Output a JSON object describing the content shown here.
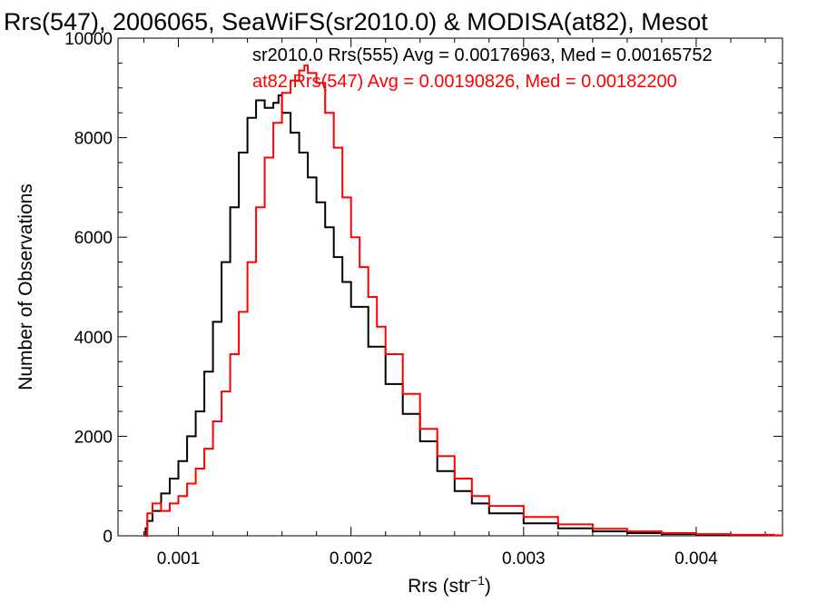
{
  "chart_data": {
    "type": "line",
    "title": "Rrs(547), 2006065, SeaWiFS(sr2010.0) & MODISA(at82), Mesot",
    "xlabel_main": "Rrs (str",
    "xlabel_sup": "−1",
    "xlabel_end": ")",
    "ylabel": "Number of Observations",
    "xlim": [
      0.00065,
      0.0045
    ],
    "ylim": [
      0,
      10000
    ],
    "xticks": [
      0.001,
      0.002,
      0.003,
      0.004
    ],
    "xtick_labels": [
      "0.001",
      "0.002",
      "0.003",
      "0.004"
    ],
    "yticks": [
      0,
      2000,
      4000,
      6000,
      8000,
      10000
    ],
    "ytick_labels": [
      "0",
      "2000",
      "4000",
      "6000",
      "8000",
      "10000"
    ],
    "grid": false,
    "legend_placement": "top-right",
    "series": [
      {
        "name": "sr2010.0 Rrs(555) Avg = 0.00176963, Med = 0.00165752",
        "color": "#000000",
        "x": [
          0.0008,
          0.00081,
          0.00082,
          0.00085,
          0.0009,
          0.00095,
          0.001,
          0.00105,
          0.0011,
          0.00115,
          0.0012,
          0.00125,
          0.0013,
          0.00135,
          0.0014,
          0.00145,
          0.0015,
          0.00155,
          0.00158,
          0.0016,
          0.00165,
          0.0017,
          0.00175,
          0.0018,
          0.00185,
          0.0019,
          0.00195,
          0.002,
          0.0021,
          0.0022,
          0.0023,
          0.0024,
          0.0025,
          0.0026,
          0.0027,
          0.0028,
          0.003,
          0.0032,
          0.0034,
          0.0036,
          0.0038,
          0.004,
          0.0042,
          0.00445
        ],
        "y": [
          0,
          150,
          300,
          500,
          850,
          1150,
          1500,
          2000,
          2500,
          3300,
          4300,
          5500,
          6600,
          7700,
          8400,
          8750,
          8600,
          8700,
          8850,
          8500,
          8100,
          7700,
          7200,
          6700,
          6200,
          5600,
          5100,
          4600,
          3800,
          3050,
          2450,
          1900,
          1300,
          900,
          650,
          450,
          250,
          150,
          90,
          55,
          35,
          25,
          15,
          8
        ]
      },
      {
        "name": "at82 Rrs(547) Avg = 0.00190826, Med = 0.00182200",
        "color": "#ff0000",
        "x": [
          0.0008,
          0.00082,
          0.00085,
          0.0009,
          0.00095,
          0.001,
          0.00105,
          0.0011,
          0.00115,
          0.0012,
          0.00125,
          0.0013,
          0.00135,
          0.0014,
          0.00145,
          0.0015,
          0.00155,
          0.0016,
          0.00165,
          0.0017,
          0.00173,
          0.00175,
          0.0018,
          0.00185,
          0.0019,
          0.00195,
          0.002,
          0.00205,
          0.0021,
          0.00215,
          0.0022,
          0.0023,
          0.0024,
          0.0025,
          0.0026,
          0.0027,
          0.0028,
          0.003,
          0.0032,
          0.0034,
          0.0036,
          0.0038,
          0.004,
          0.0042,
          0.00445
        ],
        "y": [
          0,
          450,
          650,
          500,
          650,
          800,
          1050,
          1350,
          1750,
          2300,
          2900,
          3650,
          4500,
          5500,
          6600,
          7600,
          8300,
          8900,
          9150,
          9350,
          9450,
          9300,
          9100,
          8500,
          7800,
          6800,
          6000,
          5400,
          4800,
          4200,
          3650,
          2850,
          2150,
          1600,
          1150,
          800,
          600,
          380,
          230,
          140,
          90,
          55,
          35,
          20,
          10
        ]
      }
    ]
  }
}
